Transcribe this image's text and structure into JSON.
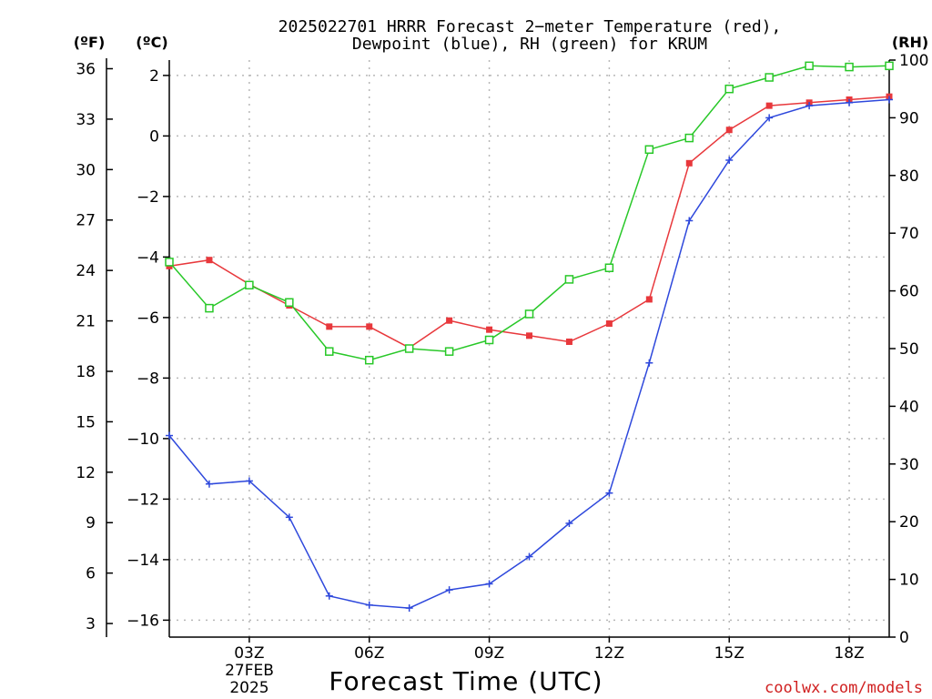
{
  "header": {
    "title_line1": "2025022701 HRRR Forecast 2−meter Temperature (red),",
    "title_line2": "Dewpoint (blue), RH (green) for KRUM"
  },
  "credit": "coolwx.com/models",
  "colors": {
    "temperature": "#e8383c",
    "dewpoint": "#2e48dc",
    "rh": "#28c828",
    "grid": "#b8b8b8"
  },
  "chart_data": {
    "type": "line",
    "xlabel": "Forecast Time (UTC)",
    "x_hours": [
      1,
      2,
      3,
      4,
      5,
      6,
      7,
      8,
      9,
      10,
      11,
      12,
      13,
      14,
      15,
      16,
      17,
      18,
      19
    ],
    "xlim": [
      1,
      19
    ],
    "x_ticks": [
      {
        "hour": 3,
        "label": "03Z"
      },
      {
        "hour": 6,
        "label": "06Z"
      },
      {
        "hour": 9,
        "label": "09Z"
      },
      {
        "hour": 12,
        "label": "12Z"
      },
      {
        "hour": 15,
        "label": "15Z"
      },
      {
        "hour": 18,
        "label": "18Z"
      }
    ],
    "date_label_line1": "27FEB",
    "date_label_line2": "2025",
    "axes": {
      "left_f": {
        "unit": "(ºF)",
        "ticks": [
          36,
          33,
          30,
          27,
          24,
          21,
          18,
          15,
          12,
          9,
          6,
          3
        ],
        "ylim": [
          2.2,
          36.5
        ]
      },
      "left_c": {
        "unit": "(ºC)",
        "ticks": [
          2,
          0,
          -2,
          -4,
          -6,
          -8,
          -10,
          -12,
          -14,
          -16
        ],
        "ylim": [
          -16.56,
          2.5
        ]
      },
      "right_rh": {
        "unit": "(RH)",
        "ticks": [
          100,
          90,
          80,
          70,
          60,
          50,
          40,
          30,
          20,
          10,
          0
        ],
        "ylim": [
          0,
          100
        ]
      }
    },
    "series": [
      {
        "name": "Temperature",
        "axis": "left_c",
        "marker": "filled-square",
        "color": "#e8383c",
        "values": [
          -4.3,
          -4.1,
          -4.9,
          -5.6,
          -6.3,
          -6.3,
          -7.0,
          -6.1,
          -6.4,
          -6.6,
          -6.8,
          -6.2,
          -5.4,
          -0.9,
          0.2,
          1.0,
          1.1,
          1.2,
          1.3
        ]
      },
      {
        "name": "Dewpoint",
        "axis": "left_c",
        "marker": "plus",
        "color": "#2e48dc",
        "values": [
          -9.9,
          -11.5,
          -11.4,
          -12.6,
          -15.2,
          -15.5,
          -15.6,
          -15.0,
          -14.8,
          -13.9,
          -12.8,
          -11.8,
          -7.5,
          -2.8,
          -0.8,
          0.6,
          1.0,
          1.1,
          1.2
        ]
      },
      {
        "name": "RH",
        "axis": "right_rh",
        "marker": "open-square",
        "color": "#28c828",
        "values": [
          65,
          57,
          61,
          58,
          49.5,
          48,
          50,
          49.5,
          51.5,
          56,
          62,
          64,
          84.5,
          86.5,
          95,
          97,
          99,
          98.8,
          99
        ]
      }
    ]
  }
}
